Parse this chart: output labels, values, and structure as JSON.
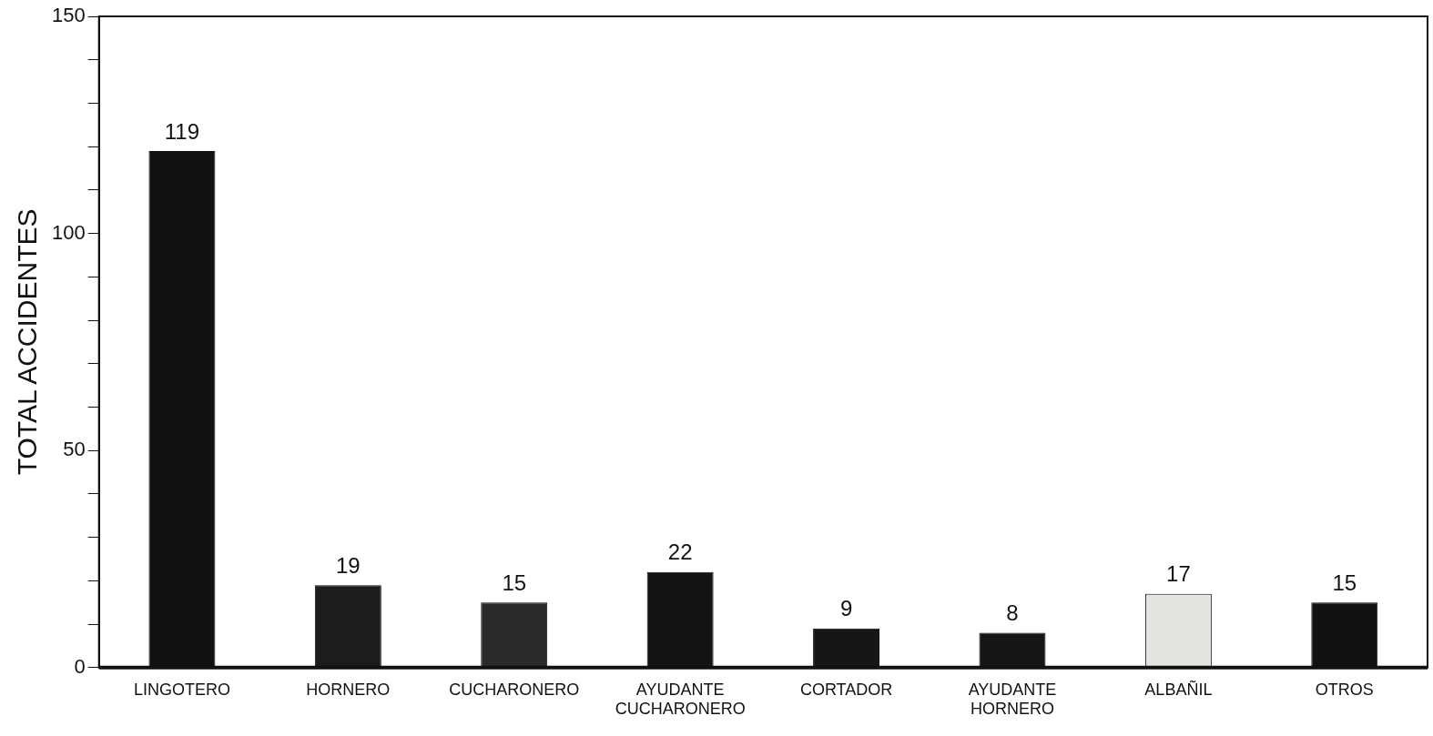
{
  "chart_data": {
    "type": "bar",
    "categories": [
      "LINGOTERO",
      "HORNERO",
      "CUCHARONERO",
      "AYUDANTE CUCHARONERO",
      "CORTADOR",
      "AYUDANTE HORNERO",
      "ALBAÑIL",
      "OTROS"
    ],
    "values": [
      119,
      19,
      15,
      22,
      9,
      8,
      17,
      15
    ],
    "colors": [
      "#111111",
      "#1c1c1c",
      "#2a2a2a",
      "#141414",
      "#161616",
      "#151515",
      "#e4e4e0",
      "#121212"
    ],
    "ylabel": "TOTAL ACCIDENTES",
    "ylim": [
      0,
      150
    ],
    "yticks": [
      0,
      {
        "value": 10,
        "label": null
      },
      {
        "value": 20,
        "label": null
      },
      {
        "value": 30,
        "label": null
      },
      {
        "value": 40,
        "label": null
      },
      50,
      {
        "value": 60,
        "label": null
      },
      {
        "value": 70,
        "label": null
      },
      {
        "value": 80,
        "label": null
      },
      {
        "value": 90,
        "label": null
      },
      100,
      {
        "value": 110,
        "label": null
      },
      {
        "value": 120,
        "label": null
      },
      {
        "value": 130,
        "label": null
      },
      {
        "value": 140,
        "label": null
      },
      150
    ],
    "data_labels": true,
    "grid": false,
    "legend": false
  }
}
